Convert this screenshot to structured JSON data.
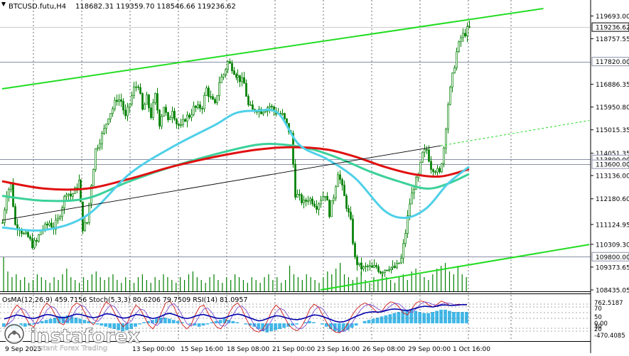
{
  "header": {
    "symbol": "BTCUSD.futu,H4",
    "ohlc": "118682.31 119359.70 118546.66 119236.62"
  },
  "indicator_header": "OsMA(12,26,9) 459.7156  Stoch(5,3,3) 80.6206 79.7509  RSI(14) 81.0957",
  "watermark": {
    "brand": "instaforex",
    "tagline": "Instant Forex Trading"
  },
  "colors": {
    "background": "#ffffff",
    "candle": "#008000",
    "ema_fast": "#4fd0e8",
    "ema_mid": "#3cd19a",
    "ema_slow": "#e01010",
    "channel": "#22dd22",
    "trendline": "#000000",
    "level_line": "#8a8fa8",
    "osma_hist": "#41b8e8",
    "macd_line": "#0000aa",
    "stoch_line": "#d01818",
    "rsi_line": "#7a4fd0"
  },
  "chart_data": {
    "type": "candlestick",
    "timeframe": "H4",
    "ylim": [
      108435.05,
      120000
    ],
    "y_ticks": [
      "119693.00",
      "118757.55",
      "116886.35",
      "115950.80",
      "115015.35",
      "114051.35",
      "113136.00",
      "112180.60",
      "111124.95",
      "110309.30",
      "109373.65",
      "108435.05"
    ],
    "price_labels": [
      {
        "text": "119236.62",
        "price": 119236.62,
        "style": "current"
      },
      {
        "text": "117820.00",
        "price": 117820,
        "style": "level"
      },
      {
        "text": "113800.00",
        "price": 113800,
        "style": "level"
      },
      {
        "text": "113600.00",
        "price": 113600,
        "style": "level"
      },
      {
        "text": "109800.00",
        "price": 109800,
        "style": "level"
      }
    ],
    "x_labels": [
      "9 Sep 2025",
      "13 Sep 00:00",
      "15 Sep 16:00",
      "18 Sep 08:00",
      "21 Sep 00:00",
      "23 Sep 16:00",
      "26 Sep 08:00",
      "29 Sep 00:00",
      "1 Oct 16:00"
    ],
    "close_path": [
      [
        0,
        111200
      ],
      [
        6,
        112400
      ],
      [
        12,
        112800
      ],
      [
        18,
        111100
      ],
      [
        24,
        111000
      ],
      [
        30,
        110700
      ],
      [
        36,
        110600
      ],
      [
        42,
        110300
      ],
      [
        48,
        110400
      ],
      [
        54,
        110900
      ],
      [
        60,
        111000
      ],
      [
        66,
        111200
      ],
      [
        72,
        111000
      ],
      [
        78,
        111300
      ],
      [
        84,
        111900
      ],
      [
        90,
        112500
      ],
      [
        96,
        112300
      ],
      [
        102,
        112500
      ],
      [
        108,
        112900
      ],
      [
        114,
        111000
      ],
      [
        120,
        111200
      ],
      [
        126,
        112800
      ],
      [
        132,
        114200
      ],
      [
        138,
        114600
      ],
      [
        144,
        115000
      ],
      [
        150,
        115600
      ],
      [
        156,
        115900
      ],
      [
        162,
        116300
      ],
      [
        168,
        116200
      ],
      [
        174,
        115500
      ],
      [
        180,
        116100
      ],
      [
        186,
        116700
      ],
      [
        192,
        116900
      ],
      [
        198,
        115800
      ],
      [
        204,
        116300
      ],
      [
        210,
        115600
      ],
      [
        216,
        116400
      ],
      [
        222,
        115300
      ],
      [
        228,
        116000
      ],
      [
        234,
        115300
      ],
      [
        240,
        115900
      ],
      [
        246,
        115300
      ],
      [
        252,
        115100
      ],
      [
        258,
        115500
      ],
      [
        264,
        115600
      ],
      [
        270,
        115900
      ],
      [
        276,
        115900
      ],
      [
        282,
        116000
      ],
      [
        288,
        116700
      ],
      [
        294,
        116300
      ],
      [
        300,
        116000
      ],
      [
        306,
        117000
      ],
      [
        312,
        117300
      ],
      [
        318,
        117800
      ],
      [
        324,
        117600
      ],
      [
        330,
        117300
      ],
      [
        336,
        117100
      ],
      [
        342,
        116900
      ],
      [
        348,
        116000
      ],
      [
        354,
        115800
      ],
      [
        360,
        115900
      ],
      [
        366,
        115800
      ],
      [
        372,
        115900
      ],
      [
        378,
        116000
      ],
      [
        384,
        115800
      ],
      [
        390,
        115700
      ],
      [
        396,
        115600
      ],
      [
        402,
        115200
      ],
      [
        408,
        114800
      ],
      [
        414,
        112400
      ],
      [
        420,
        112200
      ],
      [
        426,
        112000
      ],
      [
        432,
        112200
      ],
      [
        438,
        112100
      ],
      [
        444,
        111900
      ],
      [
        450,
        112200
      ],
      [
        456,
        112400
      ],
      [
        462,
        111600
      ],
      [
        468,
        112300
      ],
      [
        474,
        113300
      ],
      [
        480,
        112600
      ],
      [
        486,
        111900
      ],
      [
        492,
        111200
      ],
      [
        498,
        109700
      ],
      [
        504,
        109400
      ],
      [
        510,
        109300
      ],
      [
        516,
        109400
      ],
      [
        522,
        109300
      ],
      [
        528,
        109400
      ],
      [
        534,
        109200
      ],
      [
        540,
        109300
      ],
      [
        546,
        109400
      ],
      [
        552,
        109300
      ],
      [
        558,
        109400
      ],
      [
        564,
        109700
      ],
      [
        570,
        110800
      ],
      [
        576,
        112000
      ],
      [
        582,
        112700
      ],
      [
        588,
        113100
      ],
      [
        594,
        114000
      ],
      [
        600,
        114200
      ],
      [
        606,
        113500
      ],
      [
        612,
        113400
      ],
      [
        618,
        113200
      ],
      [
        624,
        114300
      ],
      [
        630,
        116100
      ],
      [
        636,
        117200
      ],
      [
        642,
        118200
      ],
      [
        648,
        118800
      ],
      [
        654,
        119000
      ],
      [
        660,
        119236.62
      ]
    ],
    "ema_fast": [
      [
        0,
        111000
      ],
      [
        60,
        110900
      ],
      [
        120,
        111500
      ],
      [
        180,
        113200
      ],
      [
        240,
        114300
      ],
      [
        300,
        115200
      ],
      [
        330,
        115700
      ],
      [
        360,
        115800
      ],
      [
        390,
        115700
      ],
      [
        420,
        114400
      ],
      [
        460,
        113800
      ],
      [
        500,
        113000
      ],
      [
        540,
        111700
      ],
      [
        570,
        111400
      ],
      [
        600,
        111800
      ],
      [
        630,
        112800
      ],
      [
        660,
        113500
      ]
    ],
    "ema_mid": [
      [
        0,
        112300
      ],
      [
        60,
        112100
      ],
      [
        120,
        112200
      ],
      [
        180,
        112900
      ],
      [
        240,
        113500
      ],
      [
        300,
        114000
      ],
      [
        360,
        114400
      ],
      [
        400,
        114400
      ],
      [
        440,
        114200
      ],
      [
        480,
        113800
      ],
      [
        520,
        113300
      ],
      [
        560,
        112900
      ],
      [
        600,
        112600
      ],
      [
        630,
        112800
      ],
      [
        660,
        113200
      ]
    ],
    "ema_slow": [
      [
        0,
        112900
      ],
      [
        60,
        112600
      ],
      [
        120,
        112600
      ],
      [
        180,
        113000
      ],
      [
        240,
        113500
      ],
      [
        300,
        113900
      ],
      [
        360,
        114200
      ],
      [
        410,
        114300
      ],
      [
        460,
        114200
      ],
      [
        500,
        113900
      ],
      [
        540,
        113500
      ],
      [
        580,
        113200
      ],
      [
        620,
        113100
      ],
      [
        660,
        113400
      ]
    ],
    "channel_upper": {
      "start": [
        0,
        116700
      ],
      "end": [
        765,
        120000
      ]
    },
    "channel_lower": {
      "start": [
        450,
        108435.05
      ],
      "end": [
        830,
        110300
      ]
    },
    "trendline": {
      "start": [
        0,
        111300
      ],
      "end": [
        830,
        115400
      ]
    },
    "vertical_grid_x": [
      47,
      115,
      183,
      251,
      319,
      387,
      455,
      523,
      591,
      659,
      719
    ],
    "volume": [
      1.2,
      0.7,
      0.5,
      0.6,
      0.4,
      0.5,
      0.3,
      0.4,
      0.6,
      0.5,
      0.4,
      0.3,
      0.5,
      0.4,
      0.6,
      0.8,
      0.5,
      0.4,
      0.3,
      0.5,
      0.4,
      0.6,
      0.7,
      0.5,
      0.4,
      0.5,
      0.6,
      0.4,
      0.3,
      0.5,
      0.4,
      0.3,
      0.5,
      0.6,
      0.4,
      0.3,
      0.5,
      0.4,
      0.6,
      0.5,
      0.4,
      0.3,
      0.5,
      0.4,
      0.6,
      0.7,
      0.5,
      0.4,
      0.3,
      0.5,
      0.6,
      0.4,
      0.3,
      0.5,
      0.4,
      0.6,
      0.5,
      0.4,
      0.3,
      0.5,
      0.4,
      0.3,
      0.5,
      0.6,
      0.4,
      0.5,
      0.3,
      0.4,
      0.9,
      0.6,
      0.5,
      0.4,
      0.6,
      0.5,
      0.4,
      0.3,
      0.5,
      0.7,
      0.6,
      0.8,
      1.0,
      0.6,
      0.5,
      0.4,
      0.5,
      0.7,
      0.4,
      0.3,
      0.5,
      0.4,
      0.6,
      0.5,
      0.4,
      0.3,
      0.5,
      0.6,
      0.4,
      0.7,
      0.8,
      0.6,
      0.5,
      0.4,
      0.6,
      0.8,
      0.9,
      1.0,
      0.7,
      0.6,
      0.9,
      0.6,
      0.5
    ],
    "osma": [
      -0.3,
      -0.4,
      -0.5,
      -0.5,
      -0.4,
      -0.3,
      -0.2,
      -0.1,
      0.1,
      0.2,
      0.3,
      0.4,
      0.5,
      0.6,
      0.6,
      0.7,
      0.6,
      0.5,
      0.4,
      0.3,
      0.2,
      0.1,
      -0.1,
      -0.2,
      -0.3,
      -0.4,
      -0.5,
      -0.6,
      -0.7,
      -0.6,
      -0.5,
      -0.3,
      -0.1,
      0.1,
      0.2,
      0.3,
      0.4,
      0.5,
      0.5,
      0.4,
      0.3,
      0.2,
      0.1,
      0.0,
      -0.1,
      -0.2,
      -0.3,
      -0.2,
      -0.1,
      0.1,
      0.2,
      0.3,
      0.4,
      0.3,
      0.2,
      0.1,
      0.0,
      -0.1,
      -0.2,
      -0.3,
      -0.5,
      -0.7,
      -0.8,
      -0.7,
      -0.6,
      -0.5,
      -0.4,
      -0.3,
      -0.2,
      -0.1,
      0.0,
      0.1,
      0.2,
      0.1,
      0.0,
      -0.1,
      -0.3,
      -0.5,
      -0.7,
      -0.8,
      -0.7,
      -0.6,
      -0.4,
      -0.2,
      0.0,
      0.2,
      0.3,
      0.4,
      0.5,
      0.6,
      0.7,
      0.8,
      0.9,
      1.0,
      1.1,
      1.2,
      1.2,
      1.1,
      1.0,
      0.9,
      0.9,
      1.0,
      1.1,
      1.2,
      1.2,
      1.1,
      1.0,
      1.0,
      1.0,
      1.0
    ],
    "stoch": [
      20,
      40,
      65,
      80,
      70,
      50,
      30,
      25,
      45,
      70,
      85,
      75,
      55,
      35,
      30,
      50,
      75,
      85,
      80,
      60,
      40,
      30,
      45,
      70,
      88,
      80,
      60,
      40,
      25,
      35,
      60,
      80,
      70,
      50,
      30,
      20,
      35,
      60,
      85,
      90,
      75,
      50,
      30,
      20,
      30,
      55,
      75,
      80,
      60,
      40,
      25,
      20,
      35,
      60,
      78,
      85,
      70,
      45,
      25,
      15,
      12,
      20,
      40,
      65,
      80,
      70,
      50,
      30,
      20,
      15,
      25,
      45,
      70,
      82,
      75,
      55,
      35,
      20,
      12,
      10,
      18,
      35,
      55,
      70,
      80,
      85,
      80,
      70,
      60,
      65,
      80,
      88,
      85,
      75,
      60,
      55,
      70,
      85,
      90,
      88,
      80,
      75,
      82,
      90,
      85,
      78,
      80,
      82,
      80,
      80
    ],
    "rsi": [
      45,
      48,
      52,
      55,
      53,
      50,
      47,
      46,
      49,
      53,
      56,
      55,
      52,
      49,
      48,
      50,
      54,
      57,
      56,
      53,
      50,
      48,
      50,
      54,
      58,
      57,
      54,
      50,
      47,
      48,
      52,
      56,
      55,
      52,
      49,
      46,
      48,
      52,
      57,
      59,
      56,
      52,
      48,
      46,
      48,
      52,
      55,
      56,
      53,
      50,
      47,
      46,
      48,
      52,
      55,
      57,
      55,
      51,
      47,
      43,
      40,
      42,
      46,
      50,
      53,
      52,
      49,
      46,
      44,
      43,
      45,
      48,
      52,
      55,
      54,
      51,
      47,
      43,
      39,
      37,
      38,
      42,
      47,
      52,
      56,
      60,
      62,
      63,
      62,
      63,
      66,
      69,
      70,
      69,
      67,
      66,
      69,
      72,
      75,
      77,
      76,
      75,
      77,
      80,
      80,
      79,
      79,
      80,
      81,
      81
    ]
  }
}
